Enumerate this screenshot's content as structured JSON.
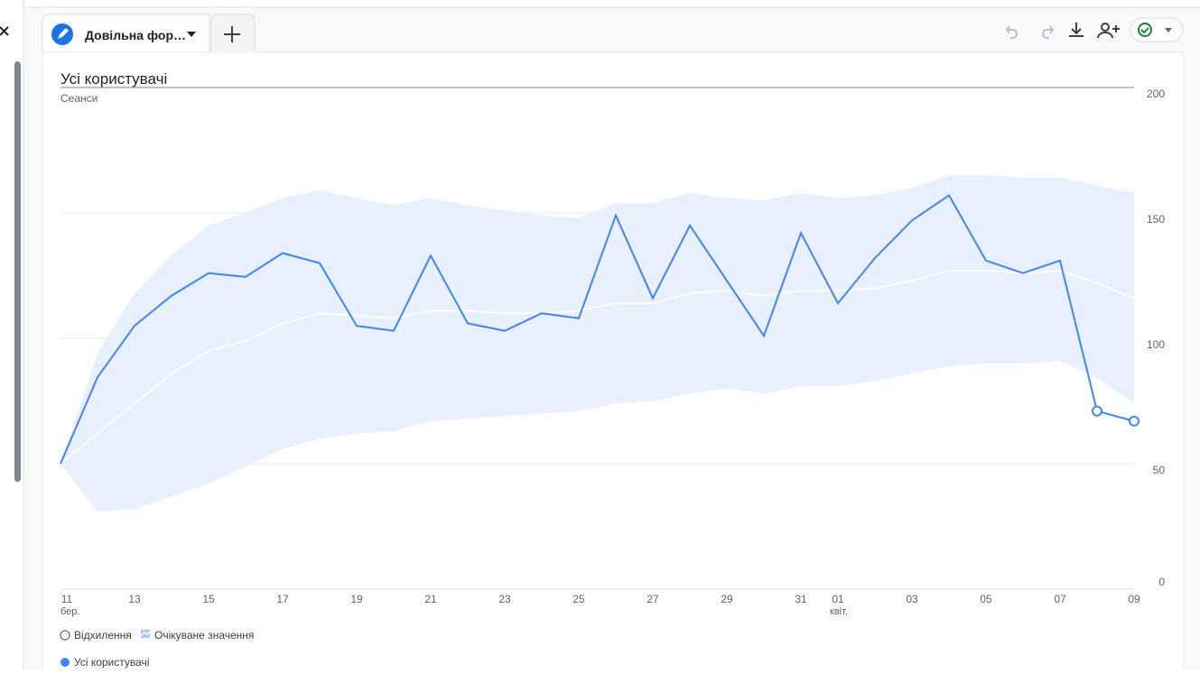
{
  "ui": {
    "tab_title": "Довільна фор…"
  },
  "chart_data": {
    "type": "line",
    "title": "Усі користувачі",
    "y_label": "Сеанси",
    "categories": [
      "11",
      null,
      "13",
      null,
      "15",
      null,
      "17",
      null,
      "19",
      null,
      "21",
      null,
      "23",
      null,
      "25",
      null,
      "27",
      null,
      "29",
      null,
      "31",
      "01",
      null,
      "03",
      null,
      "05",
      null,
      "07",
      null,
      "09"
    ],
    "month_labels": [
      "бер.",
      null,
      null,
      null,
      null,
      null,
      null,
      null,
      null,
      null,
      null,
      null,
      null,
      null,
      null,
      null,
      null,
      null,
      null,
      null,
      null,
      "квіт.",
      null,
      null,
      null,
      null,
      null,
      null,
      null,
      null
    ],
    "series": [
      {
        "name": "Усі користувачі",
        "color": "#4285f4",
        "values": [
          50,
          84.5,
          105,
          117,
          126,
          124.5,
          134,
          130,
          105,
          103,
          133,
          106,
          103,
          110,
          108,
          149,
          116,
          145,
          123,
          101,
          142,
          114,
          132,
          147,
          157,
          131,
          126,
          131,
          71,
          67
        ],
        "anomaly": [
          false,
          false,
          false,
          false,
          false,
          false,
          false,
          false,
          false,
          false,
          false,
          false,
          false,
          false,
          false,
          false,
          false,
          false,
          false,
          false,
          false,
          false,
          false,
          false,
          false,
          false,
          false,
          false,
          true,
          true
        ]
      }
    ],
    "anomaly_name": "Відхилення",
    "expected": {
      "name": "Очікуване значення",
      "line_color": "#ffffff",
      "band_color": "#e8f0fe",
      "values": [
        50,
        62,
        74,
        86,
        95,
        99,
        106,
        110,
        109,
        108,
        111,
        111,
        110,
        110,
        111,
        114,
        114,
        118,
        119,
        117,
        119,
        119,
        120,
        123,
        127,
        127,
        126,
        127,
        122,
        116
      ],
      "upper": [
        50,
        94,
        118,
        133,
        145,
        150,
        156,
        159,
        156,
        153,
        156,
        153,
        151,
        149,
        148,
        154,
        154,
        158,
        156,
        155,
        158,
        156,
        157,
        160,
        165,
        165,
        164,
        164,
        161,
        158
      ],
      "lower": [
        50,
        31,
        32,
        37,
        42,
        49,
        56,
        60,
        62,
        63,
        67,
        68,
        69,
        70,
        71,
        74,
        75,
        78,
        80,
        78,
        81,
        81,
        83,
        86,
        89,
        90,
        90,
        91,
        84,
        74
      ]
    },
    "ylim": [
      0,
      200
    ],
    "yticks": [
      0,
      50,
      100,
      150,
      200
    ],
    "grid": true
  }
}
